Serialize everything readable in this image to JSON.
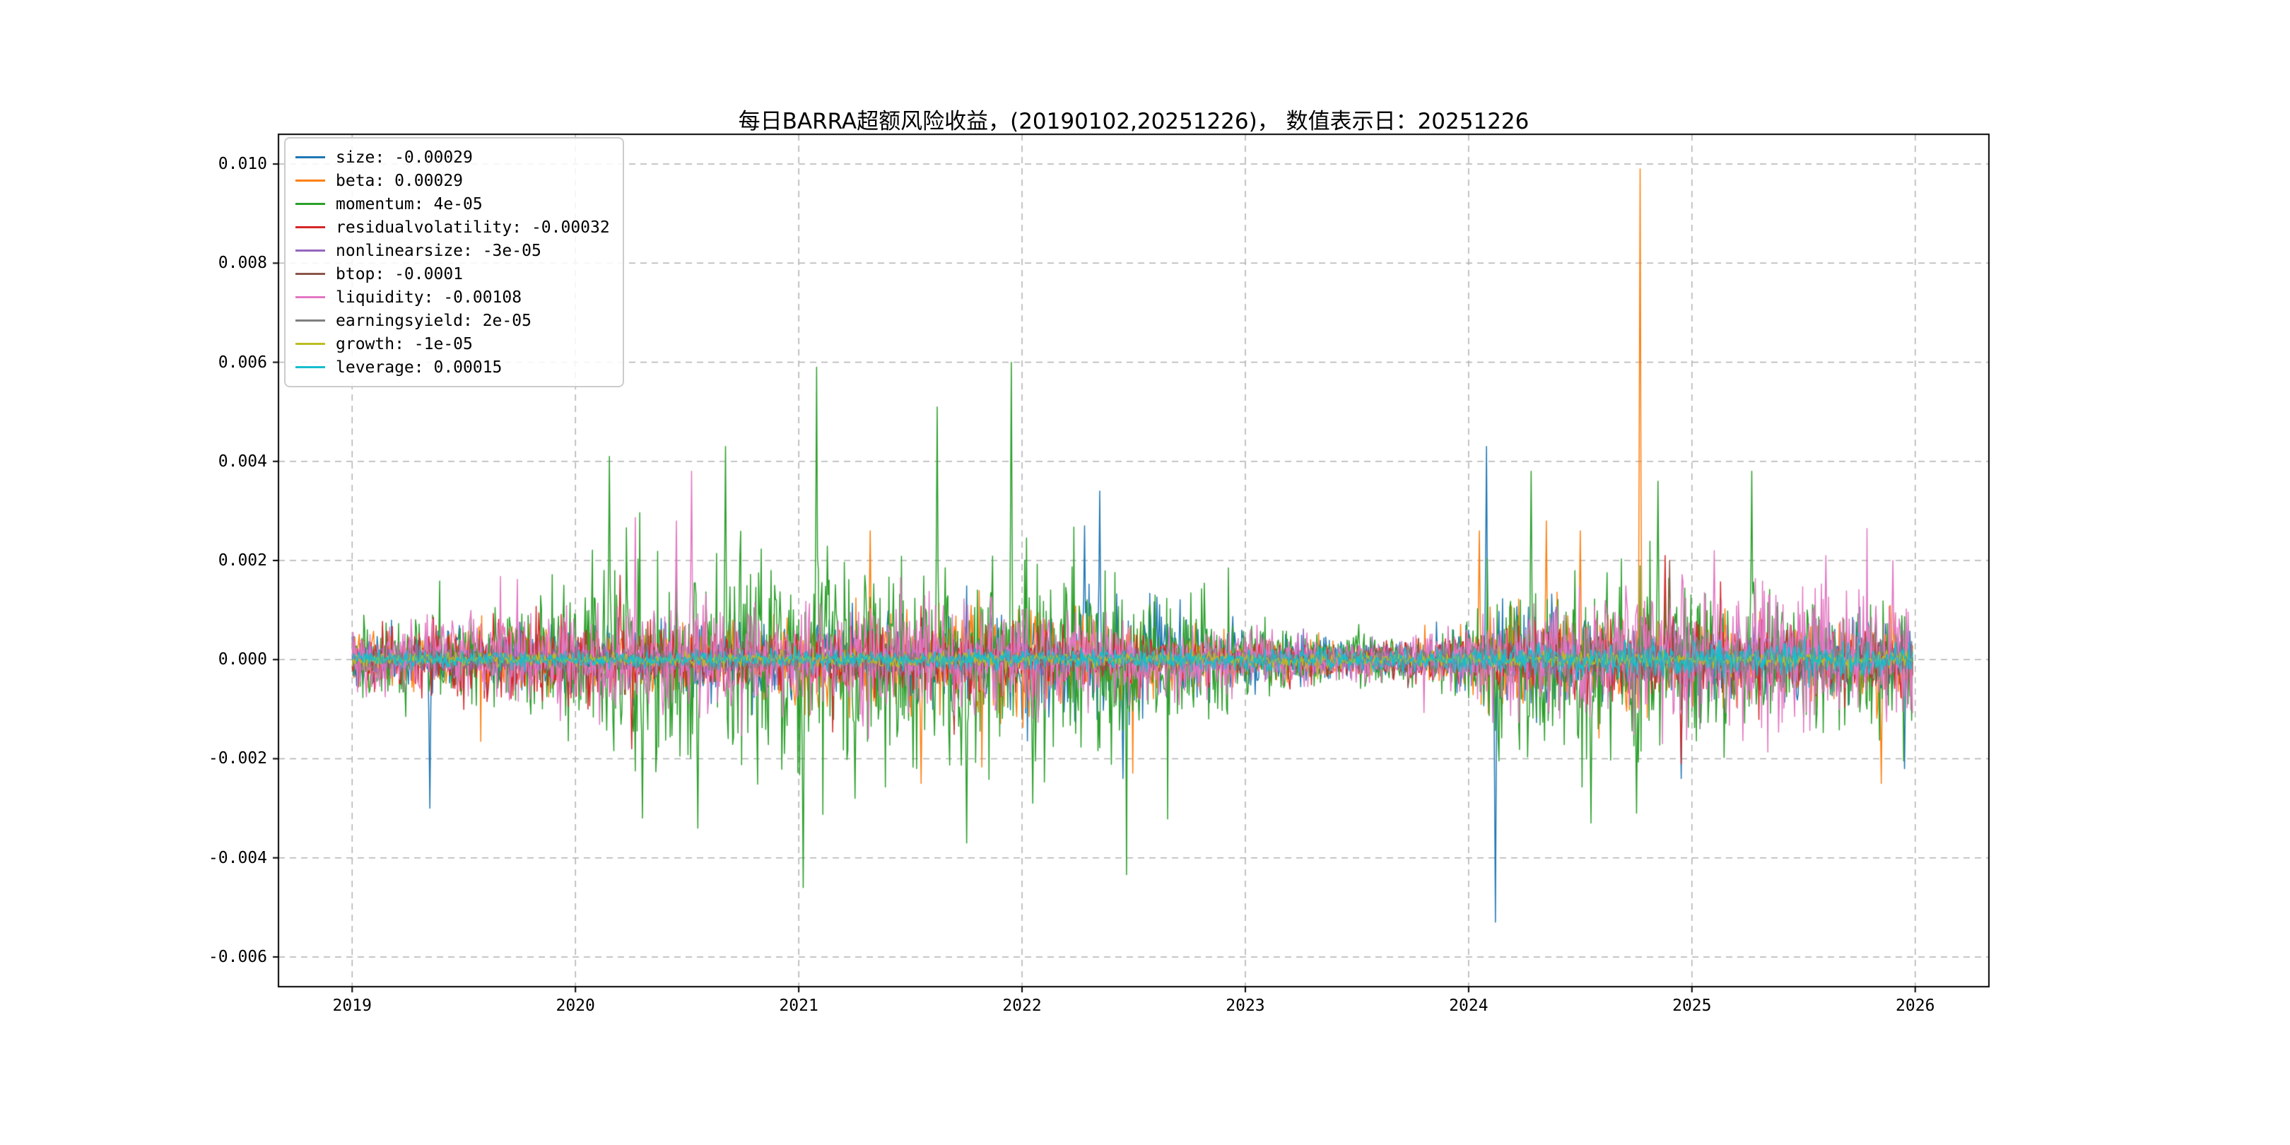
{
  "chart_data": {
    "type": "line",
    "title": "每日BARRA超额风险收益，(20190102,20251226)，  数值表示日：20251226",
    "date_range": [
      "20190102",
      "20251226"
    ],
    "value_date": "20251226",
    "xlabel": "",
    "ylabel": "",
    "grid": "dashed",
    "legend_position": "upper left",
    "xlim": [
      2018.67,
      2026.33
    ],
    "ylim": [
      -0.0066,
      0.0106
    ],
    "x_ticks": [
      2019,
      2020,
      2021,
      2022,
      2023,
      2024,
      2025,
      2026
    ],
    "x_tick_labels": [
      "2019",
      "2020",
      "2021",
      "2022",
      "2023",
      "2024",
      "2025",
      "2026"
    ],
    "y_ticks": [
      -0.006,
      -0.004,
      -0.002,
      0.0,
      0.002,
      0.004,
      0.006,
      0.008,
      0.01
    ],
    "y_tick_labels": [
      "-0.006",
      "-0.004",
      "-0.002",
      "0.000",
      "0.002",
      "0.004",
      "0.006",
      "0.008",
      "0.010"
    ],
    "x_start": 2019.0,
    "x_end": 2025.99,
    "points_per_year": 250,
    "series": [
      {
        "name": "size",
        "label": "size: -0.00029",
        "value": -0.00029,
        "color": "#1f77b4",
        "seed": 11,
        "envelope": [
          [
            2019,
            0.00045
          ],
          [
            2020,
            0.0005
          ],
          [
            2020.5,
            0.0006
          ],
          [
            2021,
            0.0006
          ],
          [
            2021.8,
            0.0007
          ],
          [
            2022.2,
            0.0009
          ],
          [
            2022.6,
            0.0009
          ],
          [
            2022.9,
            0.0005
          ],
          [
            2023.5,
            0.00025
          ],
          [
            2023.9,
            0.0003
          ],
          [
            2024.1,
            0.0009
          ],
          [
            2024.5,
            0.0006
          ],
          [
            2025,
            0.0005
          ],
          [
            2025.99,
            0.0006
          ]
        ],
        "spikes": [
          [
            2019.35,
            -0.003
          ],
          [
            2022.28,
            0.0027
          ],
          [
            2022.35,
            0.0034
          ],
          [
            2022.45,
            -0.0024
          ],
          [
            2024.08,
            0.0043
          ],
          [
            2024.12,
            -0.0053
          ],
          [
            2024.95,
            -0.0024
          ],
          [
            2025.95,
            -0.0022
          ]
        ]
      },
      {
        "name": "beta",
        "label": "beta: 0.00029",
        "value": 0.00029,
        "color": "#ff7f0e",
        "seed": 22,
        "envelope": [
          [
            2019,
            0.0004
          ],
          [
            2020,
            0.0005
          ],
          [
            2021,
            0.0006
          ],
          [
            2021.5,
            0.0008
          ],
          [
            2022,
            0.0008
          ],
          [
            2022.9,
            0.0004
          ],
          [
            2023.5,
            0.00025
          ],
          [
            2023.9,
            0.0003
          ],
          [
            2024.2,
            0.0008
          ],
          [
            2024.8,
            0.0007
          ],
          [
            2025.3,
            0.0005
          ],
          [
            2025.99,
            0.0007
          ]
        ],
        "spikes": [
          [
            2021.32,
            0.0026
          ],
          [
            2021.55,
            -0.0025
          ],
          [
            2024.05,
            0.0026
          ],
          [
            2024.35,
            0.0028
          ],
          [
            2024.5,
            0.0026
          ],
          [
            2024.77,
            0.0099
          ],
          [
            2025.85,
            -0.0025
          ]
        ]
      },
      {
        "name": "momentum",
        "label": "momentum: 4e-05",
        "value": 4e-05,
        "color": "#2ca02c",
        "seed": 33,
        "envelope": [
          [
            2019,
            0.0006
          ],
          [
            2019.7,
            0.0007
          ],
          [
            2020,
            0.0012
          ],
          [
            2020.3,
            0.0016
          ],
          [
            2020.7,
            0.0014
          ],
          [
            2021,
            0.0016
          ],
          [
            2021.5,
            0.0017
          ],
          [
            2022,
            0.0016
          ],
          [
            2022.5,
            0.0013
          ],
          [
            2022.9,
            0.0008
          ],
          [
            2023.3,
            0.0004
          ],
          [
            2023.9,
            0.0004
          ],
          [
            2024.2,
            0.0013
          ],
          [
            2024.7,
            0.0014
          ],
          [
            2025,
            0.0011
          ],
          [
            2025.5,
            0.0009
          ],
          [
            2025.99,
            0.0009
          ]
        ],
        "spikes": [
          [
            2020.15,
            0.0041
          ],
          [
            2020.3,
            -0.0032
          ],
          [
            2020.55,
            -0.0034
          ],
          [
            2020.67,
            0.0043
          ],
          [
            2021.02,
            -0.0046
          ],
          [
            2021.08,
            0.0059
          ],
          [
            2021.25,
            -0.0028
          ],
          [
            2021.62,
            0.0051
          ],
          [
            2021.75,
            -0.0037
          ],
          [
            2021.95,
            0.006
          ],
          [
            2022.05,
            -0.0029
          ],
          [
            2024.28,
            0.0038
          ],
          [
            2024.55,
            -0.0033
          ],
          [
            2024.75,
            -0.0031
          ],
          [
            2024.85,
            0.0036
          ],
          [
            2025.27,
            0.0038
          ]
        ]
      },
      {
        "name": "residualvolatility",
        "label": "residualvolatility: -0.00032",
        "value": -0.00032,
        "color": "#d62728",
        "seed": 44,
        "envelope": [
          [
            2019,
            0.0004
          ],
          [
            2020,
            0.0006
          ],
          [
            2020.5,
            0.0005
          ],
          [
            2021,
            0.0004
          ],
          [
            2022,
            0.0005
          ],
          [
            2022.9,
            0.0003
          ],
          [
            2023.5,
            0.0002
          ],
          [
            2024,
            0.0004
          ],
          [
            2024.9,
            0.0006
          ],
          [
            2025.5,
            0.0004
          ],
          [
            2025.99,
            0.0005
          ]
        ],
        "spikes": [
          [
            2020.2,
            0.0017
          ],
          [
            2020.25,
            -0.0018
          ],
          [
            2024.88,
            0.0021
          ],
          [
            2024.95,
            -0.0021
          ]
        ]
      },
      {
        "name": "nonlinearsize",
        "label": "nonlinearsize: -3e-05",
        "value": -3e-05,
        "color": "#9467bd",
        "seed": 55,
        "envelope": [
          [
            2019,
            0.00022
          ],
          [
            2020,
            0.00025
          ],
          [
            2022,
            0.00025
          ],
          [
            2023,
            0.00015
          ],
          [
            2024,
            0.00028
          ],
          [
            2025,
            0.0003
          ],
          [
            2025.99,
            0.0003
          ]
        ],
        "spikes": []
      },
      {
        "name": "btop",
        "label": "btop: -0.0001",
        "value": -0.0001,
        "color": "#8c564b",
        "seed": 66,
        "envelope": [
          [
            2019,
            0.0002
          ],
          [
            2020,
            0.00025
          ],
          [
            2022,
            0.00025
          ],
          [
            2023,
            0.00012
          ],
          [
            2024,
            0.0003
          ],
          [
            2024.9,
            0.0004
          ],
          [
            2025.99,
            0.00035
          ]
        ],
        "spikes": [
          [
            2024.9,
            0.002
          ]
        ]
      },
      {
        "name": "liquidity",
        "label": "liquidity: -0.00108",
        "value": -0.00108,
        "color": "#e377c2",
        "seed": 77,
        "envelope": [
          [
            2019,
            0.0005
          ],
          [
            2020,
            0.0007
          ],
          [
            2020.5,
            0.0008
          ],
          [
            2021,
            0.0008
          ],
          [
            2022,
            0.0008
          ],
          [
            2022.9,
            0.0005
          ],
          [
            2023.4,
            0.0003
          ],
          [
            2023.9,
            0.0004
          ],
          [
            2024.2,
            0.0009
          ],
          [
            2025,
            0.0011
          ],
          [
            2025.5,
            0.0011
          ],
          [
            2025.99,
            0.001
          ]
        ],
        "spikes": [
          [
            2020.45,
            0.0028
          ],
          [
            2020.52,
            0.0038
          ],
          [
            2025.1,
            0.0022
          ],
          [
            2025.6,
            0.0021
          ],
          [
            2025.9,
            0.002
          ]
        ]
      },
      {
        "name": "earningsyield",
        "label": "earningsyield: 2e-05",
        "value": 2e-05,
        "color": "#7f7f7f",
        "seed": 88,
        "envelope": [
          [
            2019,
            0.00015
          ],
          [
            2023,
            0.00012
          ],
          [
            2024,
            0.0002
          ],
          [
            2025,
            0.00035
          ],
          [
            2025.99,
            0.0003
          ]
        ],
        "spikes": []
      },
      {
        "name": "growth",
        "label": "growth: -1e-05",
        "value": -1e-05,
        "color": "#bcbd22",
        "seed": 99,
        "envelope": [
          [
            2019,
            0.0001
          ],
          [
            2025.99,
            0.00012
          ]
        ],
        "spikes": []
      },
      {
        "name": "leverage",
        "label": "leverage: 0.00015",
        "value": 0.00015,
        "color": "#17becf",
        "seed": 111,
        "envelope": [
          [
            2019,
            0.00012
          ],
          [
            2023,
            0.00015
          ],
          [
            2024,
            0.0002
          ],
          [
            2025,
            0.00028
          ],
          [
            2025.99,
            0.00025
          ]
        ],
        "spikes": []
      }
    ]
  }
}
